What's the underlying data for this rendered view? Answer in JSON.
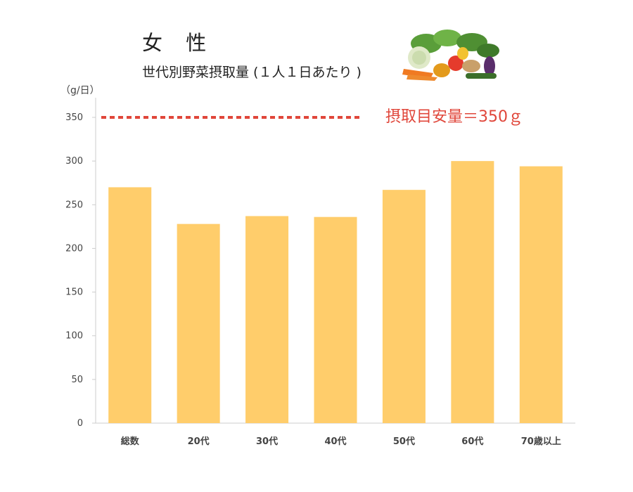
{
  "header": {
    "title": "女 性",
    "subtitle": "世代別野菜摂取量 (１人１日あたり )",
    "unit": "（g/日）",
    "target_label": "摂取目安量＝350ｇ"
  },
  "illustration": {
    "icon": "vegetables-icon"
  },
  "colors": {
    "bar": "#ffcd6b",
    "target": "#e0463a",
    "axis": "#cccccc",
    "tick_text": "#444444"
  },
  "chart_data": {
    "type": "bar",
    "title": "世代別野菜摂取量 (１人１日あたり )",
    "ylabel": "（g/日）",
    "xlabel": "",
    "categories": [
      "総数",
      "20代",
      "30代",
      "40代",
      "50代",
      "60代",
      "70歳以上"
    ],
    "values": [
      270,
      228,
      237,
      236,
      267,
      300,
      294
    ],
    "ylim": [
      0,
      350
    ],
    "yticks": [
      0,
      50,
      100,
      150,
      200,
      250,
      300,
      350
    ],
    "grid": false,
    "reference_line": {
      "value": 350,
      "label": "摂取目安量＝350ｇ",
      "style": "dotted"
    }
  }
}
